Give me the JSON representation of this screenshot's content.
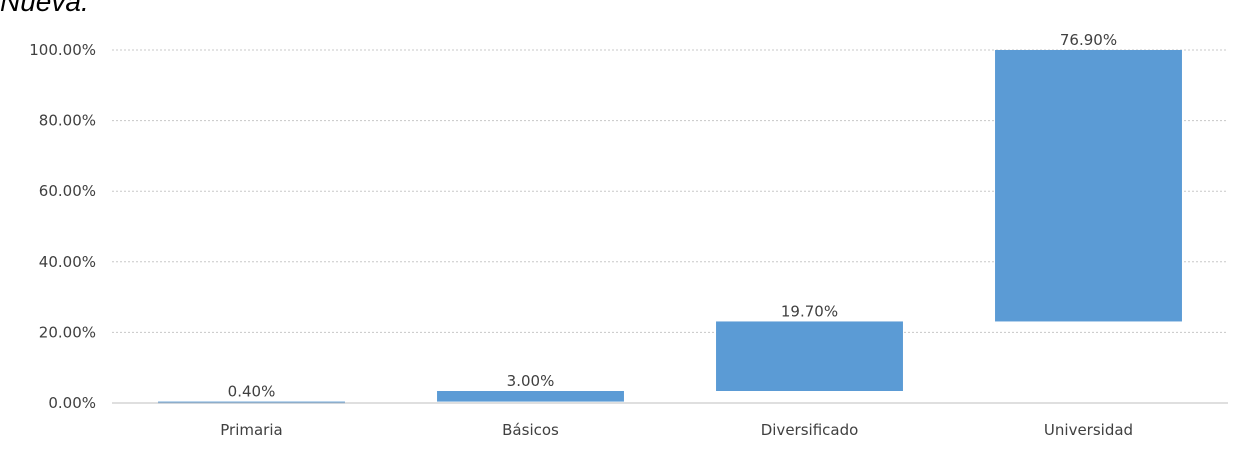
{
  "header_fragment": "Nueva.",
  "colors": {
    "bar": "#5b9bd5",
    "grid": "#c8c8c8",
    "axis": "#bfbfbf",
    "text": "#404040"
  },
  "chart_data": {
    "type": "bar",
    "subtype": "waterfall",
    "categories": [
      "Primaria",
      "Básicos",
      "Diversificado",
      "Universidad"
    ],
    "values": [
      0.4,
      3.0,
      19.7,
      76.9
    ],
    "data_labels": [
      "0.40%",
      "3.00%",
      "19.70%",
      "76.90%"
    ],
    "y_ticks": [
      "0.00%",
      "20.00%",
      "40.00%",
      "60.00%",
      "80.00%",
      "100.00%"
    ],
    "ylim": [
      0,
      100
    ],
    "grid": true,
    "legend": "none"
  }
}
